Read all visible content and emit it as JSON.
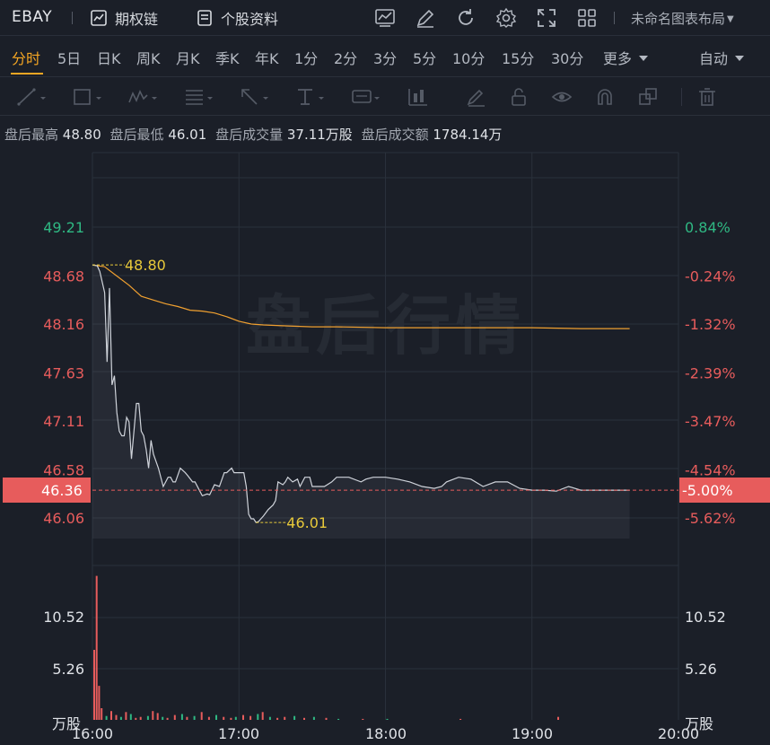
{
  "header": {
    "symbol": "EBAY",
    "options_chain_label": "期权链",
    "stock_profile_label": "个股资料",
    "layout_label": "未命名图表布局",
    "tool_icons": [
      "chart-indicator-icon",
      "draw-pencil-icon",
      "refresh-icon",
      "gear-icon",
      "fullscreen-icon",
      "grid-layout-icon"
    ]
  },
  "periods": {
    "tabs": [
      "分时",
      "5日",
      "日K",
      "周K",
      "月K",
      "季K",
      "年K",
      "1分",
      "2分",
      "3分",
      "5分",
      "10分",
      "15分",
      "30分",
      "更多"
    ],
    "active_index": 0,
    "auto_label": "自动"
  },
  "drawing_tools": [
    "trend-line-icon",
    "rectangle-icon",
    "wave-pattern-icon",
    "fibonacci-icon",
    "arrow-icon",
    "text-annotation-icon",
    "price-label-icon",
    "measure-icon",
    "brush-icon",
    "lock-icon",
    "eye-icon",
    "magnet-icon",
    "clone-icon",
    "trash-icon"
  ],
  "info": {
    "high_label": "盘后最高",
    "high_value": "48.80",
    "low_label": "盘后最低",
    "low_value": "46.01",
    "vol_label": "盘后成交量",
    "vol_value": "37.11万股",
    "amt_label": "盘后成交额",
    "amt_value": "1784.14万"
  },
  "chart": {
    "watermark": "盘后行情",
    "price_ticks_left": [
      "49.21",
      "48.68",
      "48.16",
      "47.63",
      "47.11",
      "46.58",
      "46.06"
    ],
    "pct_ticks_right": [
      "0.84%",
      "-0.24%",
      "-1.32%",
      "-2.39%",
      "-3.47%",
      "-4.54%",
      "-5.62%"
    ],
    "current_price": "46.36",
    "current_pct": "-5.00%",
    "high_marker": "48.80",
    "low_marker": "46.01",
    "volume_ticks": [
      "10.52",
      "5.26"
    ],
    "volume_unit": "万股",
    "time_ticks": [
      "16:00",
      "17:00",
      "18:00",
      "19:00",
      "20:00"
    ],
    "colors": {
      "up": "#e75c5c",
      "down": "#2fb883",
      "price_line": "#cfd3da",
      "avg_line": "#f0a030",
      "marker": "#e8c93a"
    }
  },
  "chart_data": {
    "type": "line",
    "x_range": [
      "16:00",
      "20:00"
    ],
    "ylim": [
      45.8,
      49.5
    ],
    "reference_close": 48.8,
    "series": [
      {
        "x_minutes": [
          0,
          2,
          3,
          5,
          6,
          7,
          8,
          9,
          10,
          11,
          12,
          13,
          14,
          15,
          16,
          18,
          19,
          20,
          21,
          22,
          23,
          24,
          25,
          27,
          29,
          31,
          32,
          33,
          34,
          36,
          38,
          39,
          41,
          42,
          44,
          45,
          47,
          48,
          50,
          52,
          54,
          55,
          57,
          58,
          60,
          62,
          63,
          64,
          65,
          66,
          67,
          68,
          69,
          70,
          72,
          74,
          75,
          76,
          78,
          79,
          80,
          82,
          84,
          85,
          87,
          89,
          90,
          92,
          95,
          98,
          100,
          105,
          110,
          112,
          115,
          120,
          125,
          130,
          135,
          140,
          143,
          145,
          150,
          155,
          160,
          165,
          170,
          175,
          180,
          185,
          190,
          195,
          200,
          205,
          210,
          215,
          220
        ],
        "values": [
          48.8,
          48.79,
          48.73,
          48.5,
          47.75,
          48.55,
          47.5,
          47.6,
          47.2,
          47.0,
          46.95,
          46.95,
          47.15,
          47.1,
          46.7,
          47.3,
          47.3,
          47.0,
          46.95,
          46.8,
          46.6,
          46.9,
          46.75,
          46.6,
          46.4,
          46.5,
          46.5,
          46.45,
          46.45,
          46.6,
          46.55,
          46.52,
          46.45,
          46.45,
          46.35,
          46.3,
          46.32,
          46.31,
          46.42,
          46.4,
          46.55,
          46.55,
          46.6,
          46.55,
          46.55,
          46.55,
          46.4,
          46.1,
          46.05,
          46.05,
          46.01,
          46.02,
          46.05,
          46.08,
          46.15,
          46.2,
          46.25,
          46.45,
          46.42,
          46.45,
          46.5,
          46.45,
          46.48,
          46.4,
          46.5,
          46.5,
          46.4,
          46.4,
          46.4,
          46.45,
          46.5,
          46.5,
          46.45,
          46.48,
          46.5,
          46.5,
          46.48,
          46.45,
          46.4,
          46.38,
          46.4,
          46.45,
          46.5,
          46.48,
          46.4,
          46.45,
          46.45,
          46.38,
          46.36,
          46.36,
          46.35,
          46.4,
          46.36,
          46.36,
          46.36,
          46.36,
          46.36
        ]
      },
      {
        "x_minutes": [
          0,
          5,
          10,
          15,
          20,
          25,
          30,
          35,
          40,
          45,
          50,
          55,
          60,
          65,
          70,
          80,
          90,
          100,
          120,
          140,
          160,
          180,
          200,
          220
        ],
        "values": [
          48.8,
          48.78,
          48.68,
          48.58,
          48.46,
          48.42,
          48.38,
          48.35,
          48.31,
          48.3,
          48.28,
          48.24,
          48.19,
          48.16,
          48.15,
          48.14,
          48.13,
          48.13,
          48.12,
          48.12,
          48.12,
          48.12,
          48.11,
          48.11
        ]
      }
    ],
    "volume": {
      "ylim": [
        0,
        15
      ],
      "x_minutes": [
        0,
        1,
        2,
        3,
        5,
        7,
        9,
        11,
        13,
        15,
        17,
        19,
        22,
        24,
        26,
        28,
        30,
        33,
        36,
        38,
        41,
        44,
        47,
        50,
        53,
        56,
        58,
        61,
        64,
        67,
        69,
        72,
        75,
        78,
        82,
        86,
        90,
        95,
        100,
        110,
        120,
        150,
        190
      ],
      "values": [
        7.2,
        14.8,
        3.5,
        1.2,
        0.4,
        0.9,
        0.5,
        0.3,
        0.8,
        0.6,
        0.2,
        0.3,
        0.4,
        0.9,
        0.7,
        0.3,
        0.2,
        0.5,
        0.6,
        0.3,
        0.4,
        0.8,
        0.3,
        0.5,
        0.3,
        0.2,
        0.3,
        0.5,
        0.4,
        0.6,
        0.8,
        0.3,
        0.2,
        0.3,
        0.4,
        0.2,
        0.3,
        0.2,
        0.1,
        0.1,
        0.1,
        0.1,
        0.3
      ],
      "up": [
        1,
        1,
        1,
        1,
        0,
        1,
        1,
        0,
        1,
        0,
        1,
        1,
        0,
        1,
        1,
        0,
        1,
        1,
        0,
        1,
        0,
        1,
        1,
        0,
        1,
        1,
        0,
        1,
        1,
        0,
        1,
        0,
        1,
        1,
        0,
        1,
        0,
        1,
        0,
        1,
        0,
        1,
        1
      ]
    }
  }
}
